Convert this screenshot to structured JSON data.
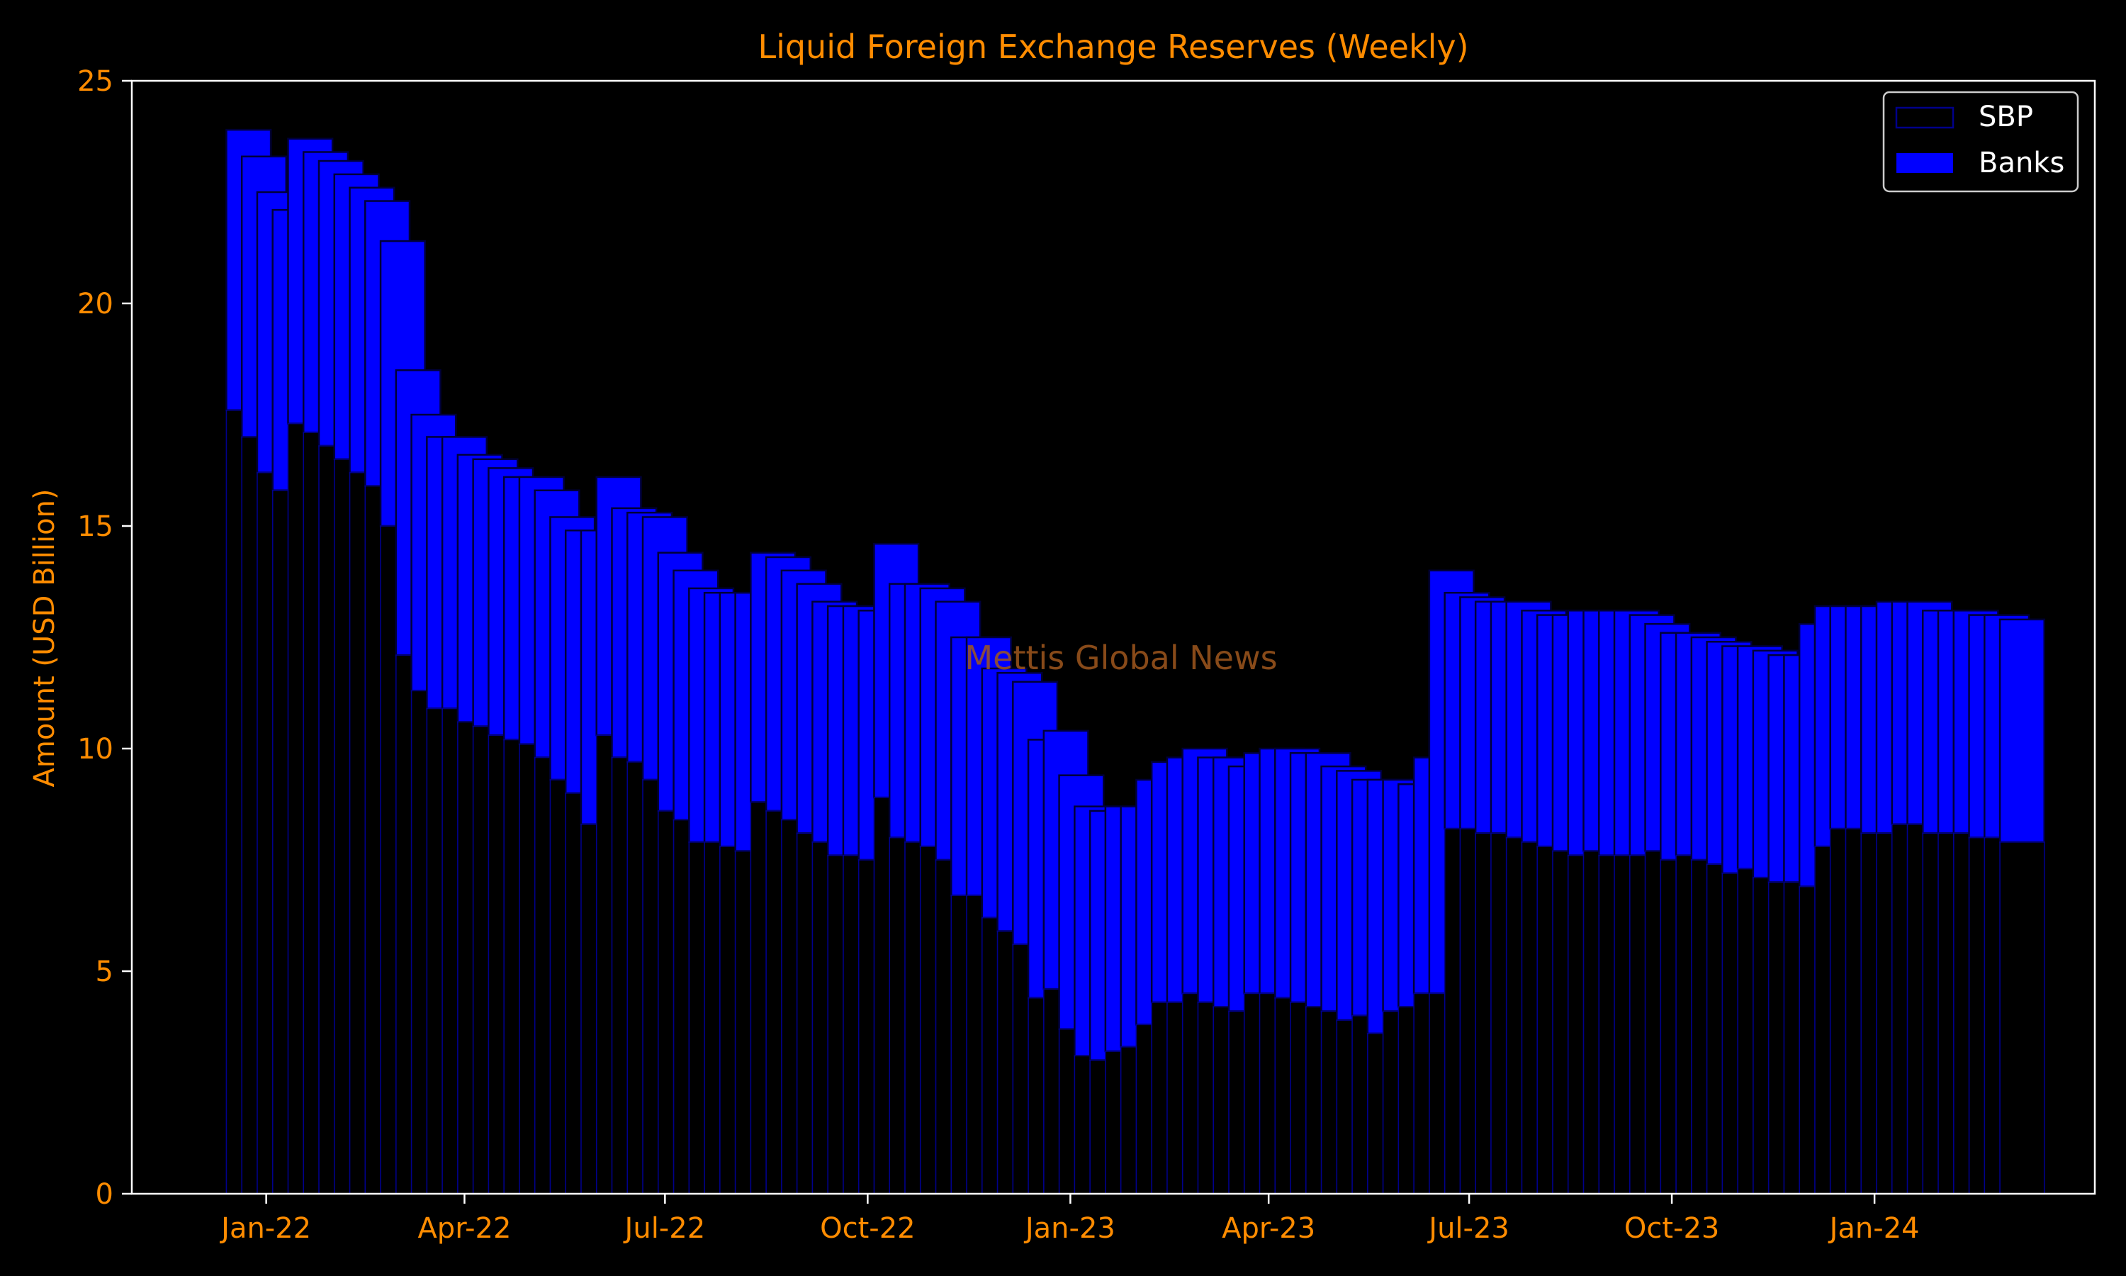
{
  "colors": {
    "background": "#000000",
    "text_orange": "#ff8c00",
    "watermark": "#a0581e",
    "axis": "#ffffff",
    "sbp_fill": "#000000",
    "sbp_edge": "#00008b",
    "banks_fill": "#0000ff",
    "banks_edge": "#00003a",
    "legend_text": "#ffffff"
  },
  "watermark": "Mettis Global News",
  "chart_data": {
    "type": "bar",
    "stacked": true,
    "title": "Liquid Foreign Exchange Reserves (Weekly)",
    "xlabel": "",
    "ylabel": "Amount (USD Billion)",
    "ylim": [
      0,
      25
    ],
    "yticks": [
      0,
      5,
      10,
      15,
      20,
      25
    ],
    "xlim": [
      "2021-11-01",
      "2024-04-10"
    ],
    "xticks": [
      {
        "date": "2022-01-01",
        "label": "Jan-22"
      },
      {
        "date": "2022-04-01",
        "label": "Apr-22"
      },
      {
        "date": "2022-07-01",
        "label": "Jul-22"
      },
      {
        "date": "2022-10-01",
        "label": "Oct-22"
      },
      {
        "date": "2023-01-01",
        "label": "Jan-23"
      },
      {
        "date": "2023-04-01",
        "label": "Apr-23"
      },
      {
        "date": "2023-07-01",
        "label": "Jul-23"
      },
      {
        "date": "2023-10-01",
        "label": "Oct-23"
      },
      {
        "date": "2024-01-01",
        "label": "Jan-24"
      }
    ],
    "grid": false,
    "legend_position": "top-right",
    "series": [
      {
        "name": "SBP",
        "values": [
          17.6,
          17.0,
          16.2,
          15.8,
          17.3,
          17.1,
          16.8,
          16.5,
          16.2,
          15.9,
          15.0,
          12.1,
          11.3,
          10.9,
          10.9,
          10.6,
          10.5,
          10.3,
          10.2,
          10.1,
          9.8,
          9.3,
          9.0,
          8.3,
          10.3,
          9.8,
          9.7,
          9.3,
          8.6,
          8.4,
          7.9,
          7.9,
          7.8,
          7.7,
          8.8,
          8.6,
          8.4,
          8.1,
          7.9,
          7.6,
          7.6,
          7.5,
          8.9,
          8.0,
          7.9,
          7.8,
          7.5,
          6.7,
          6.7,
          6.2,
          5.9,
          5.6,
          4.4,
          4.6,
          3.7,
          3.1,
          3.0,
          3.2,
          3.3,
          3.8,
          4.3,
          4.3,
          4.5,
          4.3,
          4.2,
          4.1,
          4.5,
          4.5,
          4.4,
          4.3,
          4.2,
          4.1,
          3.9,
          4.0,
          3.6,
          4.1,
          4.2,
          4.5,
          4.5,
          8.2,
          8.2,
          8.1,
          8.1,
          8.0,
          7.9,
          7.8,
          7.7,
          7.6,
          7.7,
          7.6,
          7.6,
          7.6,
          7.7,
          7.5,
          7.6,
          7.5,
          7.4,
          7.2,
          7.3,
          7.1,
          7.0,
          7.0,
          6.9,
          7.8,
          8.2,
          8.2,
          8.1,
          8.1,
          8.3,
          8.3,
          8.1,
          8.1,
          8.1,
          8.0,
          8.0,
          7.9
        ],
        "style": "outline"
      },
      {
        "name": "Banks",
        "values": [
          6.3,
          6.3,
          6.3,
          6.3,
          6.4,
          6.3,
          6.4,
          6.4,
          6.4,
          6.4,
          6.4,
          6.4,
          6.2,
          6.1,
          6.1,
          6.0,
          6.0,
          6.0,
          5.9,
          6.0,
          6.0,
          5.9,
          5.9,
          6.6,
          5.8,
          5.6,
          5.6,
          5.9,
          5.8,
          5.6,
          5.7,
          5.6,
          5.7,
          5.8,
          5.6,
          5.7,
          5.6,
          5.6,
          5.4,
          5.6,
          5.6,
          5.6,
          5.7,
          5.7,
          5.8,
          5.8,
          5.8,
          5.8,
          5.8,
          5.6,
          5.8,
          5.9,
          5.8,
          5.8,
          5.7,
          5.6,
          5.6,
          5.5,
          5.4,
          5.5,
          5.4,
          5.5,
          5.5,
          5.5,
          5.6,
          5.5,
          5.4,
          5.5,
          5.6,
          5.6,
          5.7,
          5.5,
          5.6,
          5.3,
          5.7,
          5.2,
          5.0,
          5.3,
          9.5,
          5.3,
          5.2,
          5.2,
          5.2,
          5.3,
          5.2,
          5.2,
          5.3,
          5.5,
          5.4,
          5.5,
          5.5,
          5.4,
          5.1,
          5.1,
          5.0,
          5.0,
          5.0,
          5.1,
          5.0,
          5.1,
          5.1,
          5.1,
          5.9,
          5.4,
          5.0,
          5.0,
          5.1,
          5.2,
          5.0,
          5.0,
          5.0,
          5.0,
          5.0,
          5.0,
          5.0,
          5.0
        ],
        "style": "filled"
      }
    ]
  }
}
